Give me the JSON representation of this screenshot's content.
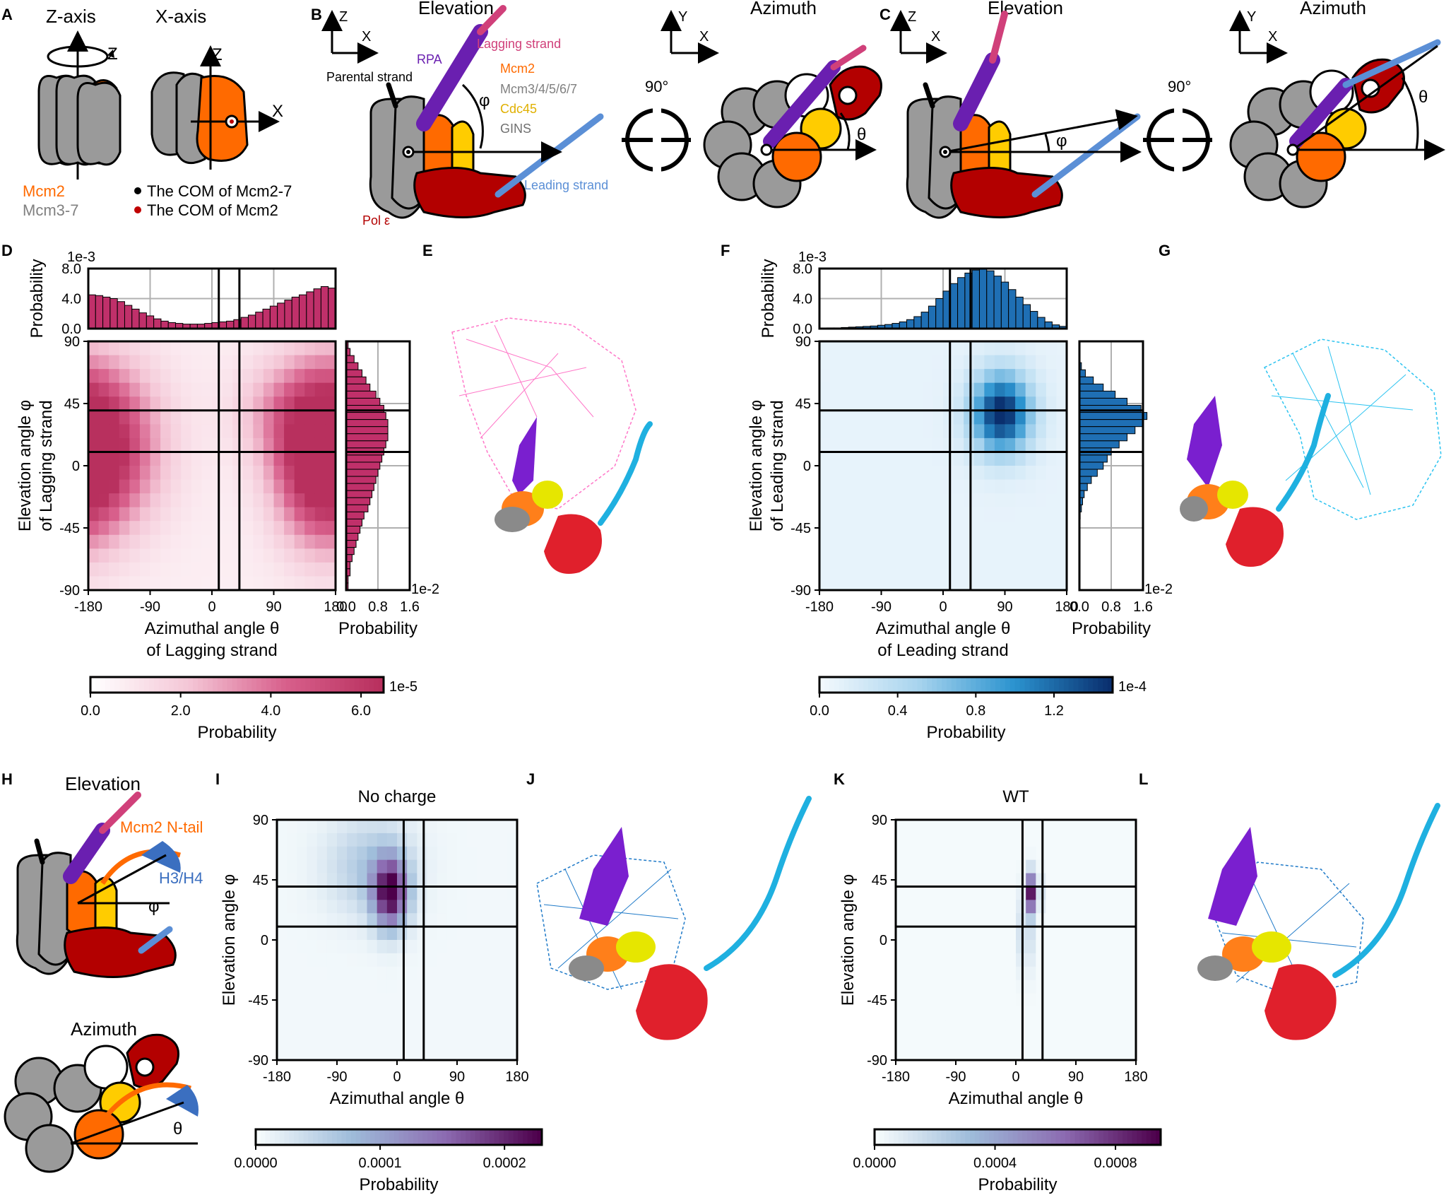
{
  "panel_letters": {
    "A": "A",
    "B": "B",
    "C": "C",
    "D": "D",
    "E": "E",
    "F": "F",
    "G": "G",
    "H": "H",
    "I": "I",
    "J": "J",
    "K": "K",
    "L": "L"
  },
  "panelA": {
    "title_z": "Z-axis",
    "title_x": "X-axis",
    "axis_z": "Z",
    "axis_x": "X",
    "legend_mcm2": "Mcm2",
    "legend_mcm37": "Mcm3-7",
    "com_mcm27": "The COM of Mcm2-7",
    "com_mcm2": "The COM of Mcm2"
  },
  "panelB": {
    "elevation": "Elevation",
    "azimuth": "Azimuth",
    "axis_z": "Z",
    "axis_x": "X",
    "axis_y": "Y",
    "rpa": "RPA",
    "lagging": "Lagging strand",
    "parental": "Parental strand",
    "mcm2": "Mcm2",
    "mcm3_7": "Mcm3/4/5/6/7",
    "cdc45": "Cdc45",
    "gins": "GINS",
    "leading": "Leading strand",
    "pol": "Pol ε",
    "phi": "φ",
    "theta": "θ",
    "rotation": "90°"
  },
  "panelC": {
    "elevation": "Elevation",
    "azimuth": "Azimuth",
    "axis_z": "Z",
    "axis_x": "X",
    "axis_y": "Y",
    "phi": "φ",
    "theta": "θ",
    "rotation": "90°"
  },
  "panelH": {
    "elevation": "Elevation",
    "azimuth": "Azimuth",
    "mcm2_tail": "Mcm2 N-tail",
    "h3h4": "H3/H4",
    "phi": "φ",
    "theta": "θ"
  },
  "colors": {
    "mcm2": "#ff6a00",
    "mcm_gray": "#9a9a9a",
    "cdc45": "#ffcc00",
    "pol": "#b30000",
    "rpa": "#6a1fb0",
    "lagging": "#d0407a",
    "leading": "#5b8fd6",
    "pink_map": "#c0306a",
    "blue_map": "#1f6fb4",
    "purple_map": "#7a0a6a"
  },
  "chart_data": [
    {
      "id": "D",
      "type": "heatmap",
      "title": "",
      "xlabel": "Azimuthal angle θ",
      "xlabel2": "of Lagging strand",
      "ylabel": "Elevation angle φ",
      "ylabel2": "of Lagging strand",
      "xlim": [
        -180,
        180
      ],
      "ylim": [
        -90,
        90
      ],
      "xticks": [
        "-180",
        "-90",
        "0",
        "90",
        "180"
      ],
      "yticks": [
        "90",
        "45",
        "0",
        "-45",
        "-90"
      ],
      "vlines": [
        10,
        40
      ],
      "hlines": [
        40,
        10
      ],
      "top_hist": {
        "ylabel": "Probability",
        "scale": "1e-3",
        "yticks": [
          "8.0",
          "4.0",
          "0.0"
        ],
        "ylim": [
          0,
          8
        ],
        "values": [
          4.5,
          4.4,
          4.2,
          4.0,
          3.6,
          3.1,
          2.6,
          2.1,
          1.7,
          1.3,
          1.0,
          0.8,
          0.7,
          0.6,
          0.6,
          0.6,
          0.7,
          0.8,
          0.9,
          1.0,
          1.2,
          1.5,
          1.8,
          2.2,
          2.6,
          3.0,
          3.4,
          3.8,
          4.2,
          4.5,
          4.9,
          5.3,
          5.6,
          5.4
        ]
      },
      "right_hist": {
        "xlabel": "Probability",
        "scale": "1e-2",
        "xticks": [
          "0.0",
          "0.8",
          "1.6"
        ],
        "xlim": [
          0,
          1.6
        ],
        "values": [
          0.05,
          0.1,
          0.2,
          0.3,
          0.4,
          0.5,
          0.6,
          0.75,
          0.85,
          0.95,
          1.0,
          1.05,
          1.05,
          1.05,
          1.0,
          0.95,
          0.9,
          0.85,
          0.8,
          0.75,
          0.7,
          0.65,
          0.6,
          0.55,
          0.45,
          0.4,
          0.35,
          0.3,
          0.25,
          0.2,
          0.15,
          0.1,
          0.1,
          0.05,
          0.05
        ]
      },
      "colorbar": {
        "label": "Probability",
        "scale": "1e-5",
        "ticks": [
          "0.0",
          "2.0",
          "4.0",
          "6.0"
        ],
        "range": [
          0,
          6.5
        ]
      }
    },
    {
      "id": "F",
      "type": "heatmap",
      "xlabel": "Azimuthal angle θ",
      "xlabel2": "of Leading strand",
      "ylabel": "Elevation angle φ",
      "ylabel2": "of Leading strand",
      "xlim": [
        -180,
        180
      ],
      "ylim": [
        -90,
        90
      ],
      "xticks": [
        "-180",
        "-90",
        "0",
        "90",
        "180"
      ],
      "yticks": [
        "90",
        "45",
        "0",
        "-45",
        "-90"
      ],
      "vlines": [
        10,
        40
      ],
      "hlines": [
        40,
        10
      ],
      "top_hist": {
        "ylabel": "Probability",
        "scale": "1e-3",
        "yticks": [
          "8.0",
          "4.0",
          "0.0"
        ],
        "ylim": [
          0,
          8
        ],
        "values": [
          0.05,
          0.1,
          0.1,
          0.15,
          0.2,
          0.25,
          0.3,
          0.35,
          0.45,
          0.55,
          0.7,
          0.9,
          1.2,
          1.6,
          2.2,
          3.0,
          4.0,
          5.0,
          6.0,
          6.8,
          7.4,
          7.8,
          8.0,
          7.7,
          7.0,
          6.2,
          5.2,
          4.2,
          3.2,
          2.3,
          1.5,
          0.9,
          0.5,
          0.3
        ]
      },
      "right_hist": {
        "xlabel": "Probability",
        "scale": "1e-2",
        "xticks": [
          "0.0",
          "0.8",
          "1.6"
        ],
        "xlim": [
          0,
          1.6
        ],
        "values": [
          0.0,
          0.0,
          0.0,
          0.05,
          0.15,
          0.35,
          0.6,
          0.9,
          1.2,
          1.55,
          1.7,
          1.6,
          1.4,
          1.2,
          1.0,
          0.8,
          0.7,
          0.6,
          0.45,
          0.3,
          0.2,
          0.12,
          0.08,
          0.05,
          0.02,
          0.01,
          0,
          0,
          0,
          0,
          0,
          0,
          0,
          0,
          0
        ]
      },
      "colorbar": {
        "label": "Probability",
        "scale": "1e-4",
        "ticks": [
          "0.0",
          "0.4",
          "0.8",
          "1.2"
        ],
        "range": [
          0,
          1.5
        ]
      }
    },
    {
      "id": "I",
      "type": "heatmap",
      "title": "No charge",
      "xlabel": "Azimuthal angle θ",
      "ylabel": "Elevation angle φ",
      "xlim": [
        -180,
        180
      ],
      "ylim": [
        -90,
        90
      ],
      "xticks": [
        "-180",
        "-90",
        "0",
        "90",
        "180"
      ],
      "yticks": [
        "90",
        "45",
        "0",
        "-45",
        "-90"
      ],
      "vlines": [
        10,
        40
      ],
      "hlines": [
        40,
        10
      ],
      "colorbar": {
        "label": "Probability",
        "ticks": [
          "0.0000",
          "0.0001",
          "0.0002"
        ],
        "range": [
          0,
          0.00023
        ]
      }
    },
    {
      "id": "K",
      "type": "heatmap",
      "title": "WT",
      "xlabel": "Azimuthal angle θ",
      "ylabel": "Elevation angle φ",
      "xlim": [
        -180,
        180
      ],
      "ylim": [
        -90,
        90
      ],
      "xticks": [
        "-180",
        "-90",
        "0",
        "90",
        "180"
      ],
      "yticks": [
        "90",
        "45",
        "0",
        "-45",
        "-90"
      ],
      "vlines": [
        10,
        40
      ],
      "hlines": [
        40,
        10
      ],
      "colorbar": {
        "label": "Probability",
        "ticks": [
          "0.0000",
          "0.0004",
          "0.0008"
        ],
        "range": [
          0,
          0.00095
        ]
      }
    }
  ]
}
